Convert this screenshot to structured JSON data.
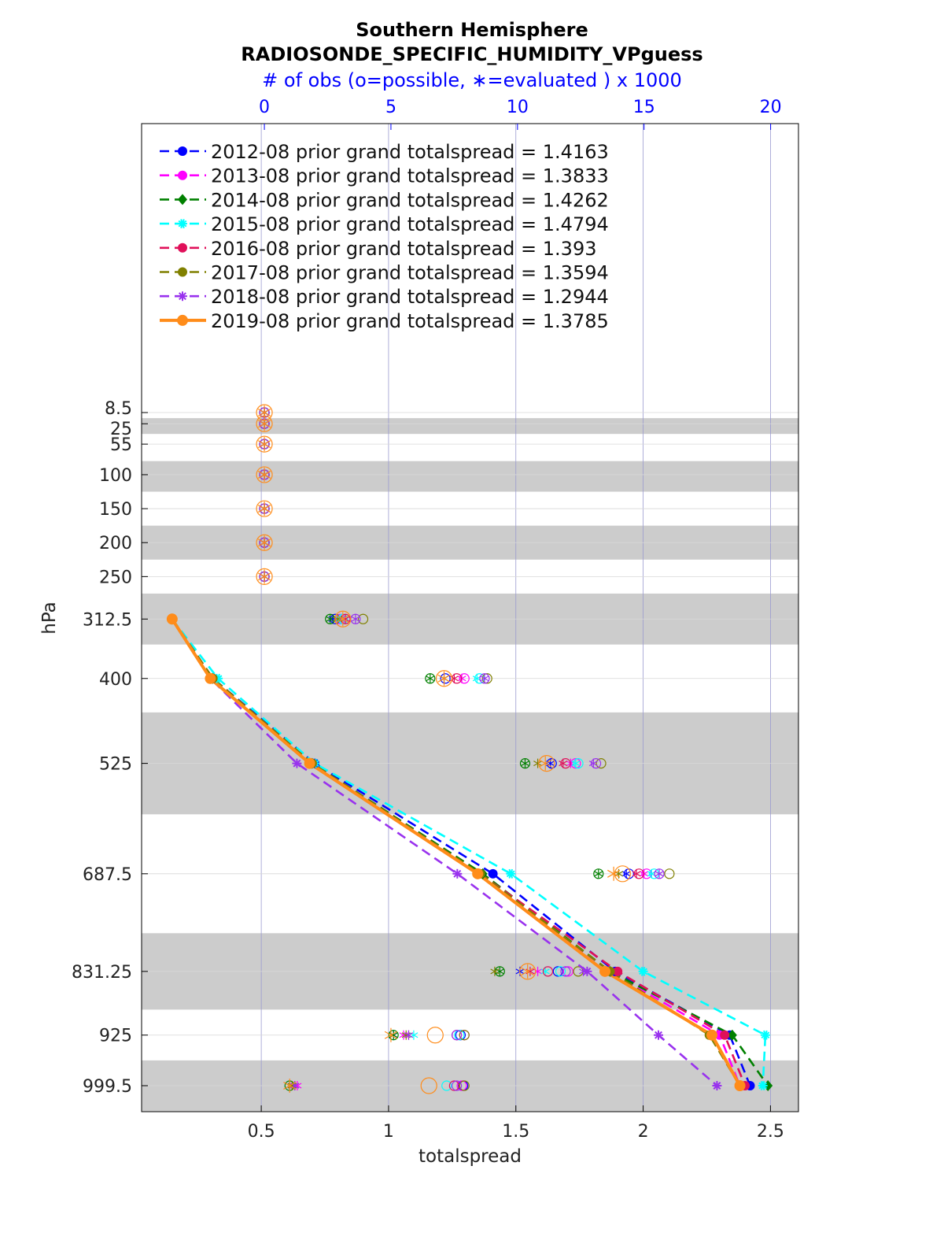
{
  "chart_data": {
    "type": "line",
    "title_line1": "Southern Hemisphere",
    "title_line2": "RADIOSONDE_SPECIFIC_HUMIDITY_VPguess",
    "top_axis_label": "# of obs (o=possible, ∗=evaluated ) x 1000",
    "xlabel": "totalspread",
    "ylabel": "hPa",
    "xlim": [
      0.03,
      2.61
    ],
    "top_xlim": [
      -4.85,
      21.1
    ],
    "x_ticks": [
      "0.5",
      "1",
      "1.5",
      "2",
      "2.5"
    ],
    "x_tick_values": [
      0.5,
      1,
      1.5,
      2,
      2.5
    ],
    "top_ticks": [
      "0",
      "5",
      "10",
      "15",
      "20"
    ],
    "top_tick_values": [
      0,
      5,
      10,
      15,
      20
    ],
    "y_ticks": [
      "8.5",
      "25",
      "55",
      "100",
      "150",
      "200",
      "250",
      "312.5",
      "400",
      "525",
      "687.5",
      "831.25",
      "925",
      "999.5"
    ],
    "levels": [
      8.5,
      25,
      55,
      100,
      150,
      200,
      250,
      312.5,
      400,
      525,
      687.5,
      831.25,
      925,
      999.5
    ],
    "gray_bands": [
      [
        16.75,
        40
      ],
      [
        80,
        125
      ],
      [
        175,
        225
      ],
      [
        275,
        350
      ],
      [
        450,
        600
      ],
      [
        775,
        887.5
      ],
      [
        962.25,
        1037
      ]
    ],
    "grid": true,
    "legend_position": "top-left",
    "series": [
      {
        "name": "2012-08 prior grand totalspread = 1.4163",
        "color": "#0000ff",
        "marker": "dot",
        "style": "dashed",
        "values": [
          0.15,
          0.31,
          0.71,
          1.41,
          1.89,
          2.34,
          2.42
        ],
        "obs_possible": [
          0.0,
          0.0,
          0.0,
          0.0,
          0.0,
          0.0,
          0.0,
          2.8,
          7.15,
          11.35,
          14.4,
          11.6,
          7.75,
          7.85
        ],
        "obs_evaluated": [
          0.0,
          0.0,
          0.0,
          0.0,
          0.0,
          0.0,
          0.0,
          2.7,
          7.1,
          11.3,
          14.3,
          10.1,
          5.1,
          1.1
        ]
      },
      {
        "name": "2013-08 prior grand totalspread = 1.3833",
        "color": "#ff00ff",
        "marker": "dot",
        "style": "dashed",
        "values": [
          0.15,
          0.31,
          0.7,
          1.35,
          1.87,
          2.3,
          2.38
        ],
        "obs_possible": [
          0.0,
          0.0,
          0.0,
          0.0,
          0.0,
          0.0,
          0.0,
          3.0,
          7.9,
          12.3,
          15.1,
          12.0,
          7.9,
          7.8
        ],
        "obs_evaluated": [
          0.0,
          0.0,
          0.0,
          0.0,
          0.0,
          0.0,
          0.0,
          3.0,
          7.8,
          12.1,
          15.0,
          10.8,
          5.5,
          1.3
        ]
      },
      {
        "name": "2014-08 prior grand totalspread = 1.4262",
        "color": "#008000",
        "marker": "diamond",
        "style": "dashed",
        "values": [
          0.15,
          0.31,
          0.7,
          1.37,
          1.87,
          2.35,
          2.49
        ],
        "obs_possible": [
          0.0,
          0.0,
          0.0,
          0.0,
          0.0,
          0.0,
          0.0,
          2.6,
          6.55,
          10.3,
          13.2,
          9.3,
          5.1,
          1.0
        ],
        "obs_evaluated": [
          0.0,
          0.0,
          0.0,
          0.0,
          0.0,
          0.0,
          0.0,
          2.6,
          6.55,
          10.3,
          13.2,
          9.3,
          5.1,
          1.0
        ]
      },
      {
        "name": "2015-08 prior grand totalspread = 1.4794",
        "color": "#00ffff",
        "marker": "star",
        "style": "dashed",
        "values": [
          0.15,
          0.33,
          0.71,
          1.48,
          2.0,
          2.48,
          2.47
        ],
        "obs_possible": [
          0.0,
          0.0,
          0.0,
          0.0,
          0.0,
          0.0,
          0.0,
          3.1,
          8.5,
          12.4,
          15.4,
          11.7,
          7.7,
          7.2
        ],
        "obs_evaluated": [
          0.0,
          0.0,
          0.0,
          0.0,
          0.0,
          0.0,
          0.0,
          3.0,
          8.4,
          12.3,
          15.3,
          11.1,
          5.9,
          1.2
        ]
      },
      {
        "name": "2016-08 prior grand totalspread = 1.393",
        "color": "#e0105a",
        "marker": "dot",
        "style": "dashed",
        "values": [
          0.15,
          0.31,
          0.7,
          1.36,
          1.9,
          2.32,
          2.4
        ],
        "obs_possible": [
          0.0,
          0.0,
          0.0,
          0.0,
          0.0,
          0.0,
          0.0,
          3.2,
          7.6,
          11.9,
          14.8,
          11.2,
          7.6,
          7.5
        ],
        "obs_evaluated": [
          0.0,
          0.0,
          0.0,
          0.0,
          0.0,
          0.0,
          0.0,
          3.2,
          7.5,
          11.8,
          14.7,
          10.5,
          5.7,
          1.2
        ]
      },
      {
        "name": "2017-08 prior grand totalspread = 1.3594",
        "color": "#808000",
        "marker": "dot",
        "style": "dashed",
        "values": [
          0.15,
          0.31,
          0.7,
          1.36,
          1.87,
          2.26,
          2.38
        ],
        "obs_possible": [
          0.0,
          0.0,
          0.0,
          0.0,
          0.0,
          0.0,
          0.0,
          3.9,
          8.8,
          13.3,
          16.0,
          12.4,
          7.9,
          7.9
        ],
        "obs_evaluated": [
          0.0,
          0.0,
          0.0,
          0.0,
          0.0,
          0.0,
          0.0,
          2.9,
          7.1,
          10.8,
          14.0,
          9.1,
          5.6,
          1.1
        ]
      },
      {
        "name": "2018-08 prior grand totalspread = 1.2944",
        "color": "#9932ee",
        "marker": "asterisk",
        "style": "dashed",
        "values": [
          0.15,
          0.3,
          0.64,
          1.27,
          1.78,
          2.06,
          2.29
        ],
        "obs_possible": [
          0.0,
          0.0,
          0.0,
          0.0,
          0.0,
          0.0,
          0.0,
          3.6,
          8.7,
          13.1,
          15.6,
          11.9,
          7.6,
          7.6
        ],
        "obs_evaluated": [
          0.0,
          0.0,
          0.0,
          0.0,
          0.0,
          0.0,
          0.0,
          3.6,
          8.7,
          13.0,
          15.6,
          12.6,
          5.7,
          1.2
        ]
      },
      {
        "name": "2019-08 prior grand totalspread = 1.3785",
        "color": "#ff8c1a",
        "marker": "dot",
        "style": "solid",
        "values": [
          0.15,
          0.3,
          0.69,
          1.35,
          1.85,
          2.27,
          2.38
        ],
        "obs_possible": [
          0.0,
          0.0,
          0.0,
          0.0,
          0.0,
          0.0,
          0.0,
          3.1,
          7.1,
          11.15,
          14.15,
          10.4,
          6.75,
          6.5
        ],
        "obs_evaluated": [
          0.0,
          0.0,
          0.0,
          0.0,
          0.0,
          0.0,
          0.0,
          3.1,
          7.1,
          11.1,
          13.8,
          10.4,
          5.0,
          1.0
        ]
      }
    ]
  }
}
